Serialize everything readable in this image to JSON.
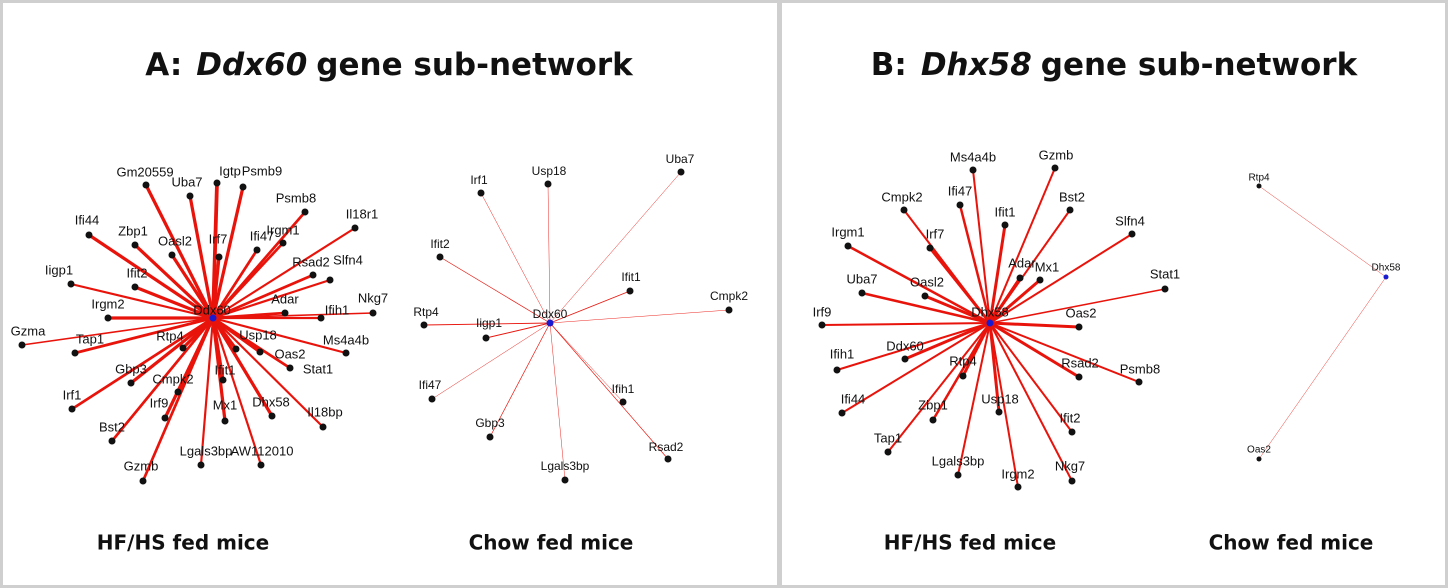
{
  "panels": [
    {
      "title": {
        "prefix": "A:",
        "gene": "Ddx60",
        "suffix": "gene sub-network"
      },
      "networks": [
        {
          "caption": "HF/HS fed mice",
          "center": "Ddx60",
          "nodes": [
            "Gm20559",
            "Uba7",
            "Igtp",
            "Psmb9",
            "Psmb8",
            "Il18r1",
            "Ifi44",
            "Zbp1",
            "Oasl2",
            "Irf7",
            "Ifi47",
            "Irgm1",
            "Rsad2",
            "Slfn4",
            "Iigp1",
            "Ifit2",
            "Irgm2",
            "Adar",
            "Ifih1",
            "Nkg7",
            "Gzma",
            "Tap1",
            "Rtp4",
            "Usp18",
            "Ms4a4b",
            "Gbp3",
            "Cmpk2",
            "Oas2",
            "Stat1",
            "Ifit1",
            "Irf1",
            "Irf9",
            "Mx1",
            "Dhx58",
            "Il18bp",
            "Bst2",
            "Gzmb",
            "Lgals3bp",
            "AW112010"
          ]
        },
        {
          "caption": "Chow fed mice",
          "center": "Ddx60",
          "nodes": [
            "Irf1",
            "Usp18",
            "Uba7",
            "Ifit2",
            "Ifit1",
            "Cmpk2",
            "Rtp4",
            "Iigp1",
            "Ifi47",
            "Ifih1",
            "Gbp3",
            "Rsad2",
            "Lgals3bp"
          ]
        }
      ]
    },
    {
      "title": {
        "prefix": "B:",
        "gene": "Dhx58",
        "suffix": "gene sub-network"
      },
      "networks": [
        {
          "caption": "HF/HS fed mice",
          "center": "Dhx58",
          "nodes": [
            "Ms4a4b",
            "Gzmb",
            "Ifi47",
            "Cmpk2",
            "Bst2",
            "Ifit1",
            "Slfn4",
            "Irgm1",
            "Irf7",
            "Mx1",
            "Adar",
            "Uba7",
            "Oasl2",
            "Stat1",
            "Irf9",
            "Oas2",
            "Ifih1",
            "Ddx60",
            "Rtp4",
            "Rsad2",
            "Psmb8",
            "Ifi44",
            "Zbp1",
            "Usp18",
            "Ifit2",
            "Tap1",
            "Lgals3bp",
            "Irgm2",
            "Nkg7"
          ]
        },
        {
          "caption": "Chow fed mice",
          "center": "Dhx58",
          "nodes": [
            "Rtp4",
            "Oas2"
          ]
        }
      ]
    }
  ]
}
